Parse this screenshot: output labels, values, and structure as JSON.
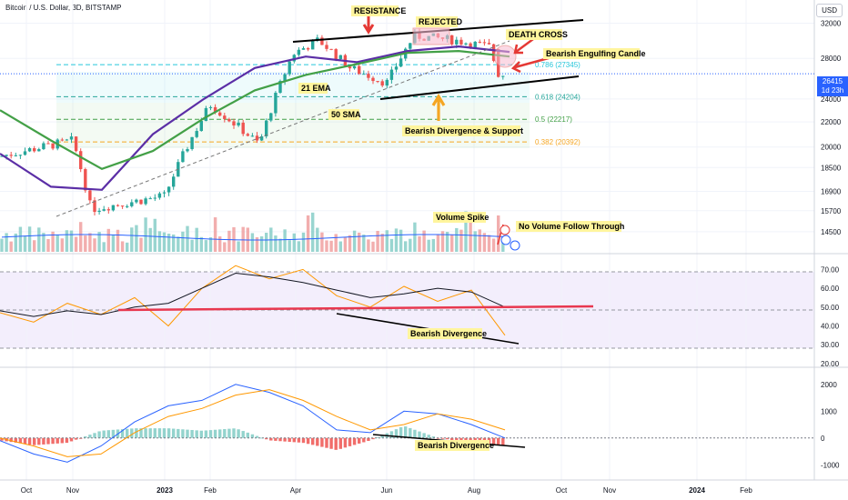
{
  "header": {
    "title": "Bitcoin / U.S. Dollar, 3D, BITSTAMP",
    "currency": "USD"
  },
  "price_tag": {
    "value": "26415",
    "countdown": "1d 23h"
  },
  "colors": {
    "up": "#26a69a",
    "down": "#ef5350",
    "ema": "#5b2ea6",
    "sma": "#43a047",
    "arrow": "#e53935",
    "support_arrow": "#f5a623",
    "rsi": "#ff9800",
    "rsi_ma": "#131722",
    "macd": "#2962ff",
    "signal": "#ff9800"
  },
  "chart_data": [
    {
      "type": "candlestick",
      "title": "Bitcoin / U.S. Dollar, 3D, BITSTAMP",
      "x_ticks": [
        "Oct",
        "Nov",
        "2023",
        "Feb",
        "Apr",
        "Jun",
        "Aug",
        "Oct",
        "Nov",
        "2024",
        "Feb"
      ],
      "y_ticks": [
        "32000",
        "28000",
        "24000",
        "22000",
        "20000",
        "18500",
        "16900",
        "15700",
        "14500"
      ],
      "ylim": [
        14000,
        34000
      ],
      "y_scale": "log",
      "ohlc_keyframes": [
        {
          "x": "Oct",
          "close": 19300
        },
        {
          "x": "Nov",
          "close": 20500
        },
        {
          "x": "Nov",
          "close": 15800
        },
        {
          "x": "2023",
          "close": 16600
        },
        {
          "x": "Feb",
          "close": 23500
        },
        {
          "x": "Mar",
          "close": 20200
        },
        {
          "x": "Apr",
          "close": 28500
        },
        {
          "x": "Apr",
          "close": 30000
        },
        {
          "x": "May",
          "close": 27000
        },
        {
          "x": "Jun",
          "close": 25500
        },
        {
          "x": "Jun",
          "close": 30500
        },
        {
          "x": "Jul",
          "close": 30000
        },
        {
          "x": "Aug",
          "close": 29200
        },
        {
          "x": "Aug",
          "close": 26100
        },
        {
          "x": "Aug",
          "close": 26415
        }
      ],
      "series": [
        {
          "name": "21 EMA",
          "values": [
            19500,
            17200,
            17000,
            21000,
            24000,
            27000,
            28200,
            27600,
            28800,
            29300,
            28700
          ]
        },
        {
          "name": "50 SMA",
          "values": [
            23000,
            20500,
            18400,
            19700,
            22300,
            24800,
            26300,
            27400,
            28600,
            28800,
            28200
          ]
        }
      ],
      "fib_levels": [
        {
          "label": "0.786 (27345)",
          "value": 27345
        },
        {
          "label": "0.618 (24204)",
          "value": 24204
        },
        {
          "label": "0.5 (22217)",
          "value": 22217
        },
        {
          "label": "0.382 (20392)",
          "value": 20392
        }
      ],
      "annotations": [
        "RESISTANCE",
        "REJECTED",
        "DEATH CROSS",
        "Bearish Engulfing Candle",
        "21 EMA",
        "50 SMA",
        "Bearish Divergence & Support",
        "Volume Spike",
        "No Volume Follow Through"
      ]
    },
    {
      "type": "line",
      "title": "",
      "y_ticks": [
        "70.00",
        "60.00",
        "50.00",
        "40.00",
        "30.00",
        "20.00"
      ],
      "ylim": [
        18,
        75
      ],
      "series": [
        {
          "name": "",
          "values": [
            47,
            42,
            52,
            46,
            55,
            40,
            60,
            72,
            65,
            70,
            56,
            50,
            61,
            53,
            59,
            35
          ]
        },
        {
          "name": "",
          "values": [
            48,
            45,
            48,
            46,
            50,
            52,
            60,
            68,
            66,
            63,
            59,
            55,
            57,
            60,
            58,
            50
          ]
        }
      ],
      "annotations": [
        "Bearish Divergence"
      ]
    },
    {
      "type": "bar",
      "title": "",
      "y_ticks": [
        "2000",
        "1000",
        "0",
        "-1000"
      ],
      "ylim": [
        -1500,
        2500
      ],
      "series": [
        {
          "name": "",
          "values": [
            -100,
            -600,
            -900,
            -300,
            600,
            1200,
            1400,
            2000,
            1700,
            1200,
            300,
            200,
            1000,
            900,
            500,
            0
          ]
        },
        {
          "name": "",
          "values": [
            0,
            -300,
            -700,
            -600,
            200,
            800,
            1100,
            1600,
            1800,
            1400,
            800,
            300,
            500,
            900,
            700,
            300
          ]
        }
      ],
      "annotations": [
        "Bearish Divergence"
      ]
    }
  ]
}
